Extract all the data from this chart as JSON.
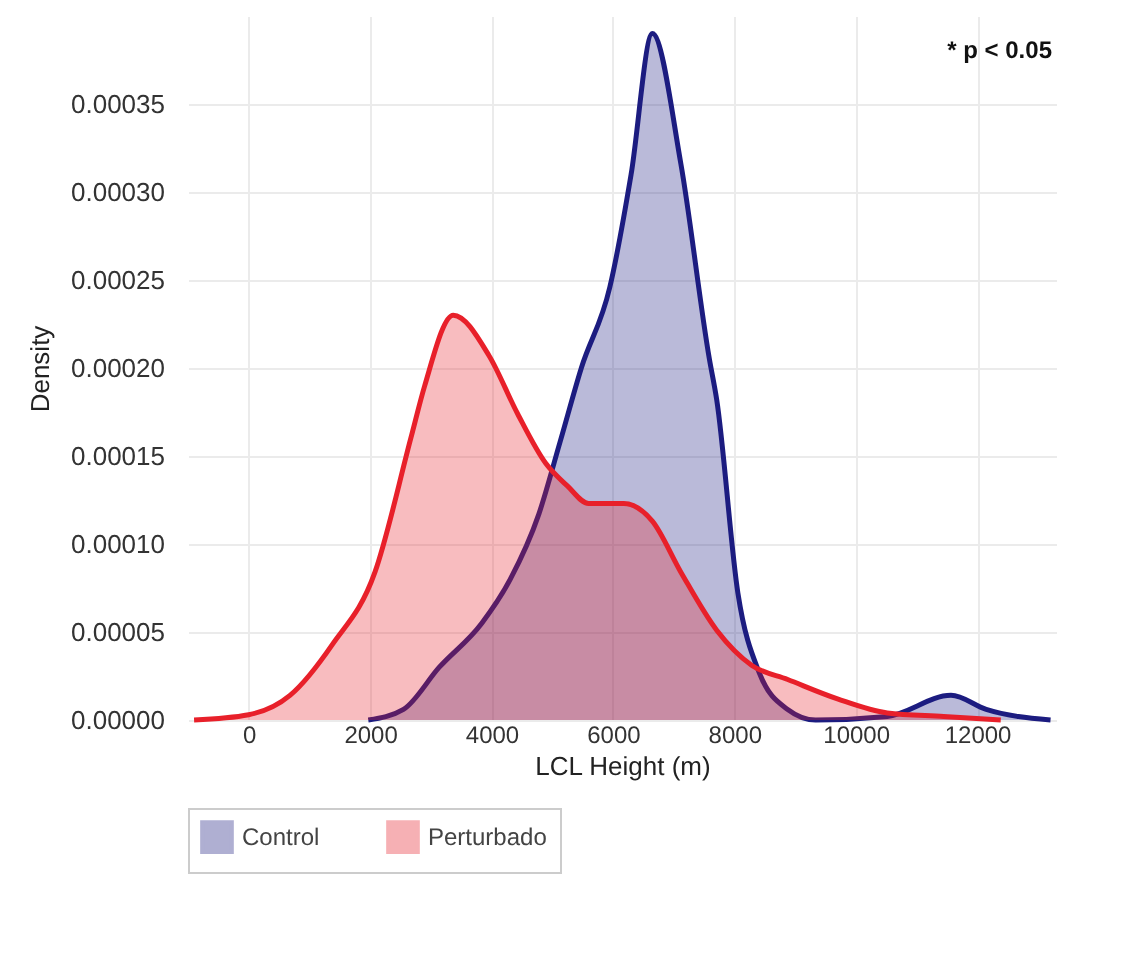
{
  "chart_data": {
    "type": "area",
    "xlabel": "LCL Height (m)",
    "ylabel": "Density",
    "annotations": [
      "* p < 0.05"
    ],
    "xlim": [
      -1000,
      13300
    ],
    "xticks": [
      0,
      2000,
      4000,
      6000,
      8000,
      10000,
      12000
    ],
    "ylim": [
      0,
      0.0004
    ],
    "yticks": [
      {
        "value": 0,
        "label": "0.00000"
      },
      {
        "value": 5e-05,
        "label": "0.00005"
      },
      {
        "value": 0.0001,
        "label": "0.00010"
      },
      {
        "value": 0.00015,
        "label": "0.00015"
      },
      {
        "value": 0.0002,
        "label": "0.00020"
      },
      {
        "value": 0.00025,
        "label": "0.00025"
      },
      {
        "value": 0.0003,
        "label": "0.00030"
      },
      {
        "value": 0.00035,
        "label": "0.00035"
      }
    ],
    "grid": true,
    "legend": "bottom",
    "series": [
      {
        "name": "Control",
        "color": "#1c1c80",
        "x": [
          1970,
          2550,
          3140,
          3840,
          4310,
          4780,
          5130,
          5480,
          5950,
          6300,
          6650,
          7120,
          7590,
          7710,
          8060,
          8410,
          8880,
          9340,
          10520,
          11570,
          12150,
          13210
        ],
        "values": [
          0,
          6e-06,
          3e-05,
          5.5e-05,
          8e-05,
          0.000117,
          0.000158,
          0.0002,
          0.000246,
          0.00031,
          0.00039,
          0.000316,
          0.000205,
          0.000182,
          7.2e-05,
          2.7e-05,
          6e-06,
          0,
          2e-06,
          1.4e-05,
          6e-06,
          0
        ]
      },
      {
        "name": "Perturbado",
        "color": "#e8202a",
        "x": [
          -900,
          0,
          680,
          1380,
          2080,
          2670,
          2900,
          3370,
          3960,
          4430,
          4890,
          5250,
          5600,
          6180,
          6650,
          7120,
          7710,
          8290,
          8880,
          9700,
          10520,
          11450,
          12390
        ],
        "values": [
          0,
          3e-06,
          1.4e-05,
          4.3e-05,
          8.4e-05,
          0.00016,
          0.00019,
          0.00023,
          0.000207,
          0.000174,
          0.000146,
          0.000133,
          0.000123,
          0.000123,
          0.000113,
          8.4e-05,
          5.1e-05,
          3.1e-05,
          2.3e-05,
          1.2e-05,
          4e-06,
          2e-06,
          0
        ]
      }
    ]
  }
}
